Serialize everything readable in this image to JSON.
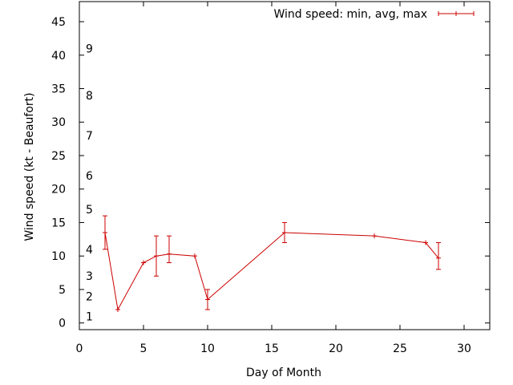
{
  "chart_data": {
    "type": "line",
    "title": "",
    "xlabel": "Day of Month",
    "ylabel": "Wind speed (kt - Beaufort)",
    "xlim": [
      0,
      32
    ],
    "ylim": [
      -1,
      48
    ],
    "x_ticks": [
      0,
      5,
      10,
      15,
      20,
      25,
      30
    ],
    "y_ticks": [
      0,
      5,
      10,
      15,
      20,
      25,
      30,
      35,
      40,
      45
    ],
    "beaufort_labels": [
      {
        "label": "1",
        "y": 1
      },
      {
        "label": "2",
        "y": 4
      },
      {
        "label": "3",
        "y": 7
      },
      {
        "label": "4",
        "y": 11
      },
      {
        "label": "5",
        "y": 17
      },
      {
        "label": "6",
        "y": 22
      },
      {
        "label": "7",
        "y": 28
      },
      {
        "label": "8",
        "y": 34
      },
      {
        "label": "9",
        "y": 41
      }
    ],
    "legend": {
      "label": "Wind speed: min, avg, max",
      "position": "top-right"
    },
    "color": "#cc0000",
    "series": [
      {
        "name": "Wind speed: min, avg, max",
        "points": [
          {
            "x": 2,
            "y": 13.5,
            "min": 11,
            "max": 16
          },
          {
            "x": 3,
            "y": 2,
            "min": 2,
            "max": 2
          },
          {
            "x": 5,
            "y": 9,
            "min": 9,
            "max": 9
          },
          {
            "x": 6,
            "y": 10,
            "min": 7,
            "max": 13
          },
          {
            "x": 7,
            "y": 10.3,
            "min": 9,
            "max": 13
          },
          {
            "x": 9,
            "y": 10,
            "min": 10,
            "max": 10
          },
          {
            "x": 10,
            "y": 3.5,
            "min": 2,
            "max": 5
          },
          {
            "x": 16,
            "y": 13.5,
            "min": 12,
            "max": 15
          },
          {
            "x": 23,
            "y": 13,
            "min": 13,
            "max": 13
          },
          {
            "x": 27,
            "y": 12,
            "min": 12,
            "max": 12
          },
          {
            "x": 28,
            "y": 9.7,
            "min": 8,
            "max": 12
          }
        ]
      }
    ]
  }
}
